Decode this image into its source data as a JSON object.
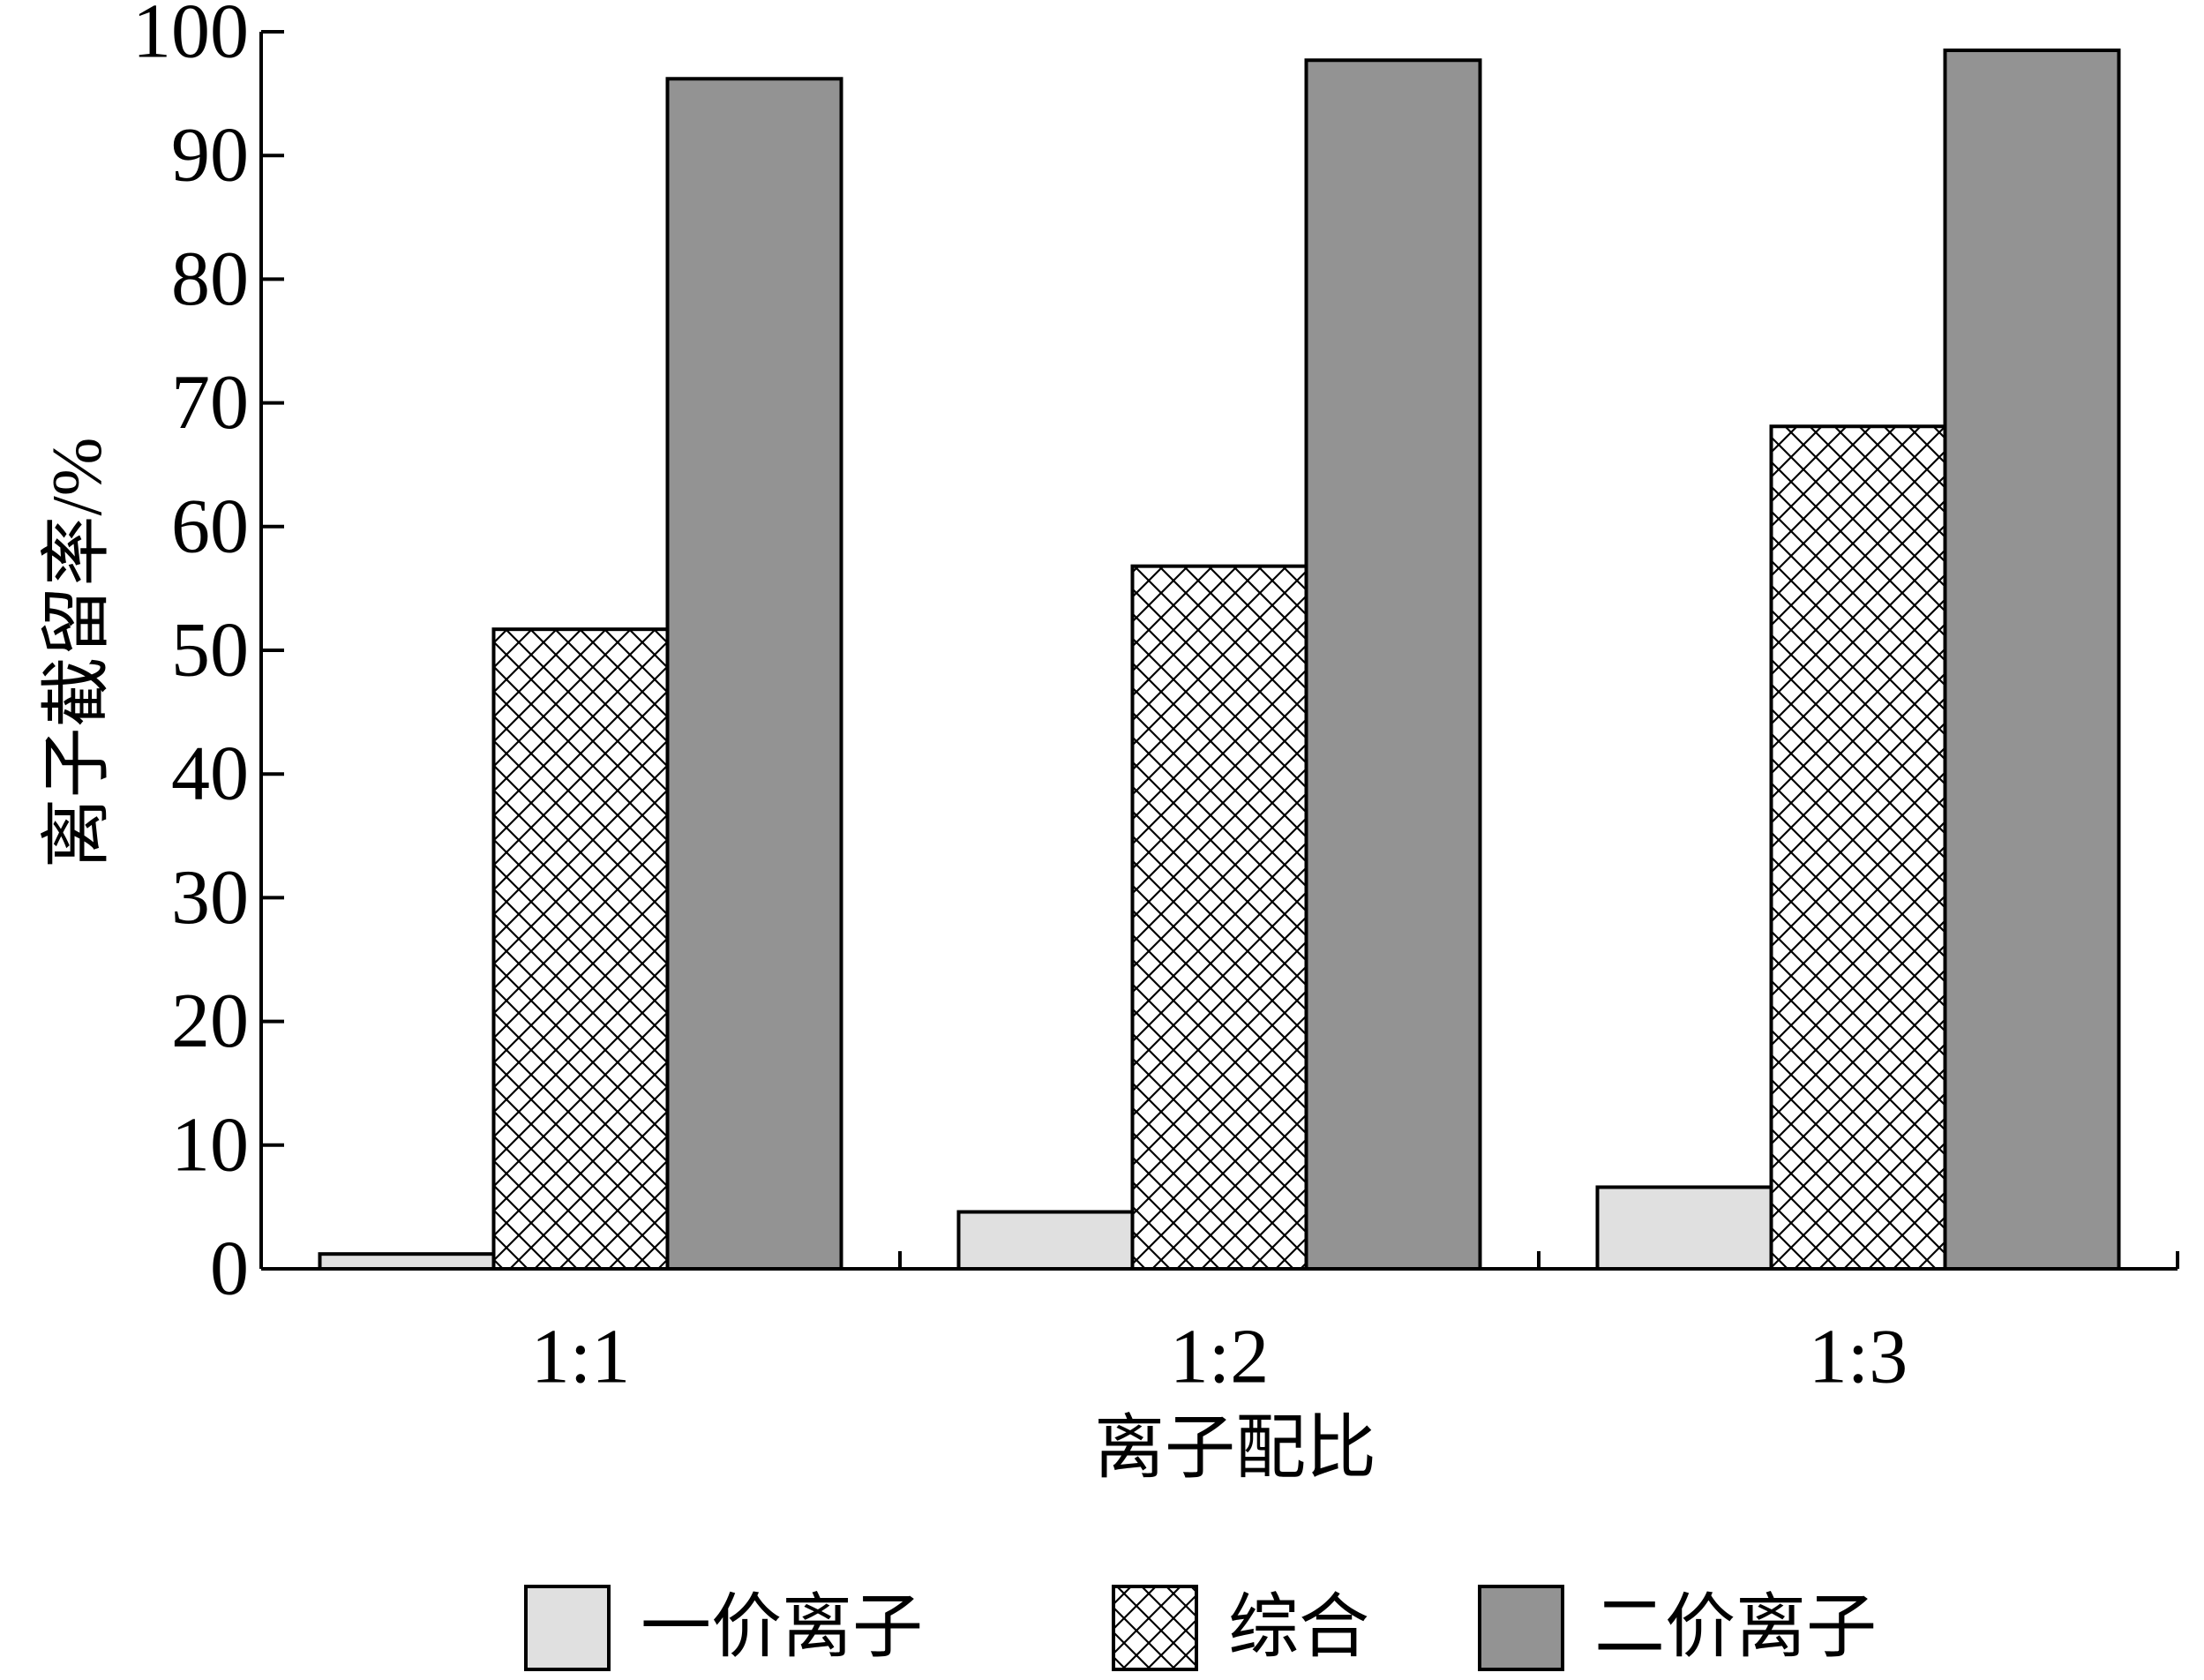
{
  "chart_data": {
    "type": "bar",
    "xlabel": "离子配比",
    "ylabel": "离子截留率/%",
    "categories": [
      "1:1",
      "1:2",
      "1:3"
    ],
    "ylim": [
      0,
      100
    ],
    "yticks": [
      "0",
      "10",
      "20",
      "30",
      "40",
      "50",
      "60",
      "70",
      "80",
      "90",
      "100"
    ],
    "legend_position": "bottom",
    "series": [
      {
        "name": "一价离子",
        "values": [
          1.2,
          4.6,
          6.6
        ],
        "fill": "#e0e0e0",
        "pattern": "solid"
      },
      {
        "name": "综合",
        "values": [
          51.7,
          56.8,
          68.1
        ],
        "fill": "#ffffff",
        "pattern": "crosshatch"
      },
      {
        "name": "二价离子",
        "values": [
          96.2,
          97.7,
          98.5
        ],
        "fill": "#939393",
        "pattern": "solid"
      }
    ]
  }
}
